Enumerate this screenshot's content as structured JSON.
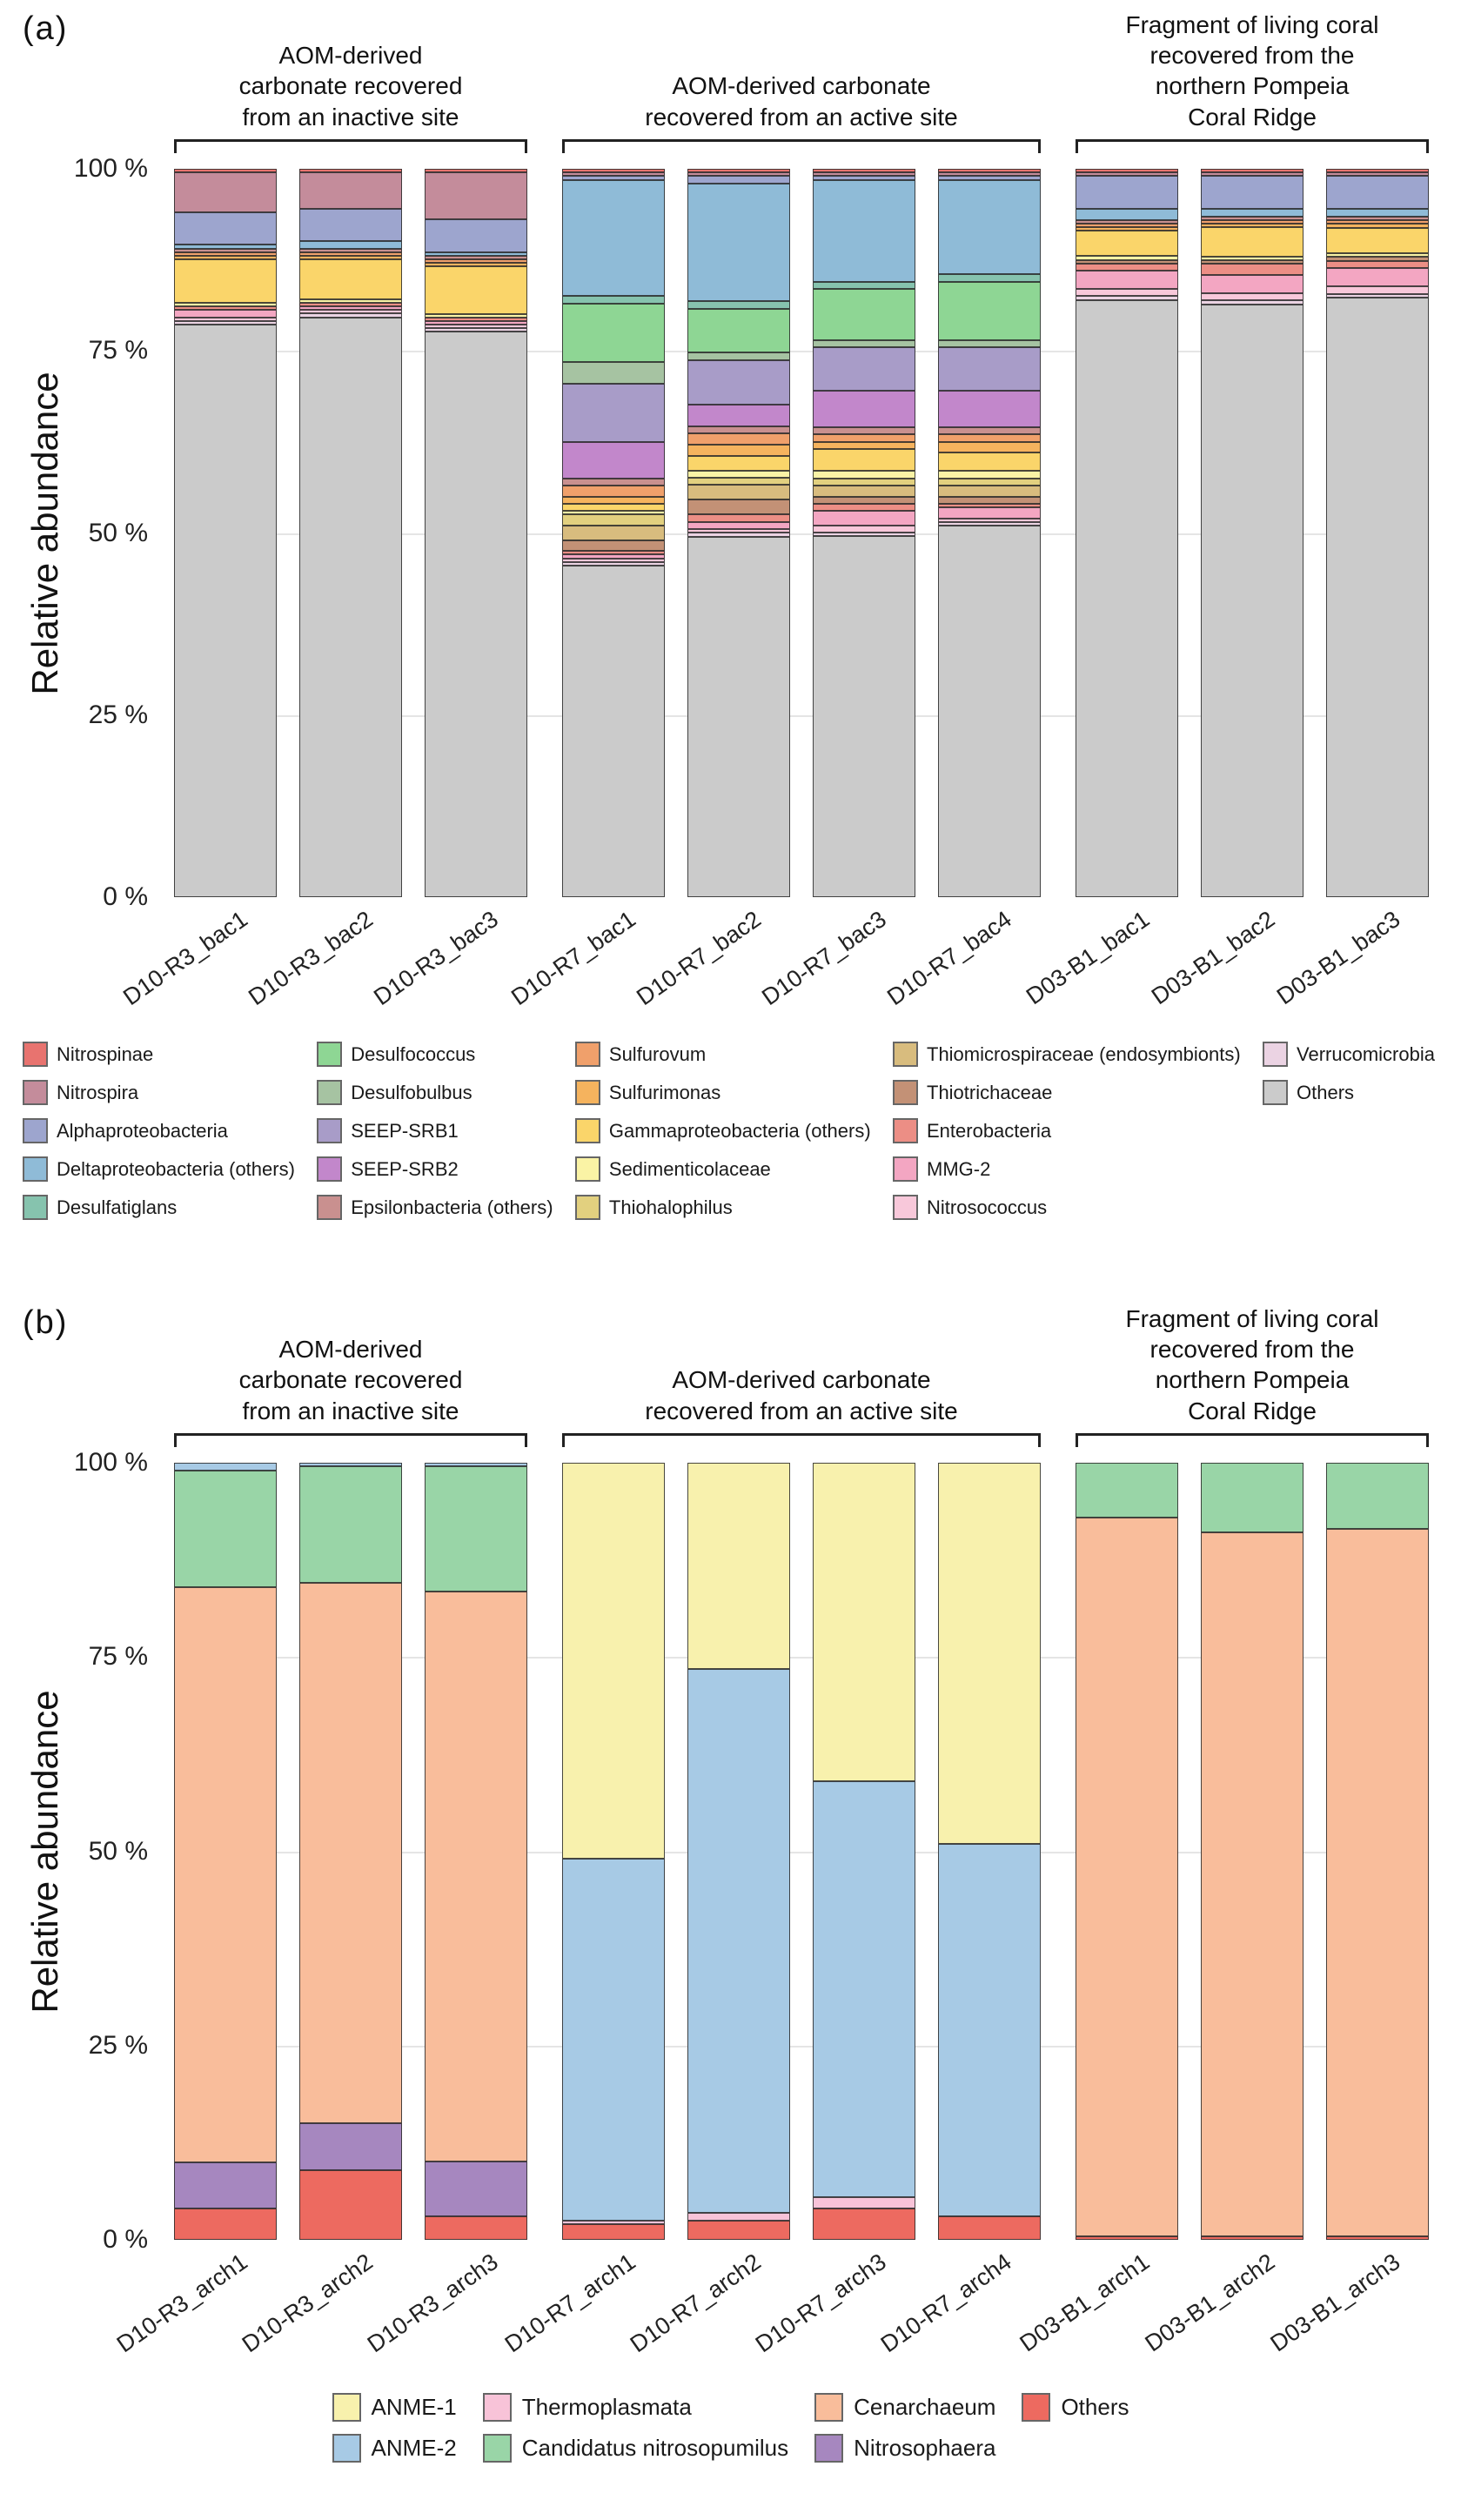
{
  "figure": {
    "panel_a_label": "(a)",
    "panel_b_label": "(b)"
  },
  "chart_data": [
    {
      "panel": "a",
      "type": "bar",
      "stacked": true,
      "title": "",
      "ylabel": "Relative abundance",
      "ylim": [
        0,
        100
      ],
      "unit": "percent",
      "grid_values": [
        25,
        50,
        75
      ],
      "y_ticks": [
        {
          "label": "100 %",
          "value": 100
        },
        {
          "label": "75 %",
          "value": 75
        },
        {
          "label": "50 %",
          "value": 50
        },
        {
          "label": "25 %",
          "value": 25
        },
        {
          "label": "0 %",
          "value": 0
        }
      ],
      "groups": [
        {
          "header_lines": [
            "AOM-derived",
            "carbonate recovered",
            "from an inactive site"
          ],
          "categories": [
            "D10-R3_bac1",
            "D10-R3_bac2",
            "D10-R3_bac3"
          ]
        },
        {
          "header_lines": [
            "AOM-derived carbonate",
            "recovered from an active site"
          ],
          "categories": [
            "D10-R7_bac1",
            "D10-R7_bac2",
            "D10-R7_bac3",
            "D10-R7_bac4"
          ]
        },
        {
          "header_lines": [
            "Fragment of living coral",
            "recovered from the",
            "northern Pompeia",
            "Coral Ridge"
          ],
          "categories": [
            "D03-B1_bac1",
            "D03-B1_bac2",
            "D03-B1_bac3"
          ]
        }
      ],
      "categories": [
        "D10-R3_bac1",
        "D10-R3_bac2",
        "D10-R3_bac3",
        "D10-R7_bac1",
        "D10-R7_bac2",
        "D10-R7_bac3",
        "D10-R7_bac4",
        "D03-B1_bac1",
        "D03-B1_bac2",
        "D03-B1_bac3"
      ],
      "series": [
        {
          "name": "Nitrospinae",
          "color": "#E8736F",
          "values": [
            0.5,
            0.5,
            0.5,
            0.5,
            0.5,
            0.5,
            0.5,
            0.5,
            0.5,
            0.5
          ]
        },
        {
          "name": "Nitrospira",
          "color": "#C48C9B",
          "values": [
            5.5,
            5,
            6.5,
            0.5,
            0.5,
            0.5,
            0.5,
            0.5,
            0.5,
            0.5
          ]
        },
        {
          "name": "Alphaproteobacteria",
          "color": "#9DA5CE",
          "values": [
            4.5,
            4.5,
            4.5,
            0.5,
            1,
            0.5,
            0.5,
            4.5,
            4.5,
            4.5
          ]
        },
        {
          "name": "Deltaproteobacteria (others)",
          "color": "#8FBBD7",
          "values": [
            0.5,
            1,
            0.5,
            16,
            16,
            14,
            13,
            1.5,
            1,
            1
          ]
        },
        {
          "name": "Desulfatiglans",
          "color": "#86C3AE",
          "values": [
            0,
            0,
            0,
            1,
            1,
            1,
            1,
            0,
            0,
            0
          ]
        },
        {
          "name": "Desulfococcus",
          "color": "#8ED694",
          "values": [
            0,
            0,
            0,
            8,
            6,
            7,
            8,
            0,
            0,
            0
          ]
        },
        {
          "name": "Desulfobulbus",
          "color": "#A6C3A2",
          "values": [
            0,
            0,
            0,
            3,
            1,
            1,
            1,
            0,
            0,
            0
          ]
        },
        {
          "name": "SEEP-SRB1",
          "color": "#A89CC8",
          "values": [
            0,
            0,
            0,
            8,
            6,
            6,
            6,
            0,
            0,
            0
          ]
        },
        {
          "name": "SEEP-SRB2",
          "color": "#C287CB",
          "values": [
            0,
            0,
            0,
            5,
            3,
            5,
            5,
            0,
            0,
            0
          ]
        },
        {
          "name": "Epsilonbacteria (others)",
          "color": "#C9908F",
          "values": [
            0.5,
            0.5,
            0.5,
            1,
            1,
            1,
            1,
            0.5,
            0.5,
            0.5
          ]
        },
        {
          "name": "Sulfurovum",
          "color": "#F0A06B",
          "values": [
            0.5,
            0.5,
            0.5,
            1.5,
            1.5,
            1,
            1,
            0.5,
            0.5,
            0.5
          ]
        },
        {
          "name": "Sulfurimonas",
          "color": "#F5B35E",
          "values": [
            0.5,
            0.5,
            0.5,
            1,
            1.5,
            1,
            1.5,
            0.5,
            0.5,
            0.5
          ]
        },
        {
          "name": "Gammaproteobacteria (others)",
          "color": "#FAD56A",
          "values": [
            6,
            5.5,
            6.5,
            1,
            2,
            3,
            2.5,
            3.5,
            4,
            3.5
          ]
        },
        {
          "name": "Sedimenticolaceae",
          "color": "#FAF3A5",
          "values": [
            0.5,
            0.5,
            0.5,
            0.5,
            1,
            1,
            1,
            0.5,
            0.5,
            0.5
          ]
        },
        {
          "name": "Thiohalophilus",
          "color": "#E2D07F",
          "values": [
            0,
            0,
            0,
            1.5,
            1,
            1,
            1,
            0,
            0,
            0
          ]
        },
        {
          "name": "Thiomicrospiraceae (endosymbionts)",
          "color": "#D8BC7E",
          "values": [
            0,
            0,
            0,
            2,
            2,
            1.5,
            1.5,
            0,
            0,
            0
          ]
        },
        {
          "name": "Thiotrichaceae",
          "color": "#C39176",
          "values": [
            0,
            0,
            0,
            1.5,
            2,
            1,
            1,
            0.5,
            0.5,
            0.5
          ]
        },
        {
          "name": "Enterobacteria",
          "color": "#EC8E85",
          "values": [
            0.5,
            0.5,
            0.5,
            0.5,
            1,
            1,
            0.5,
            1,
            1.5,
            1
          ]
        },
        {
          "name": "MMG-2",
          "color": "#F3A6C2",
          "values": [
            1,
            0.5,
            0.5,
            0.5,
            1,
            2,
            1.5,
            2.5,
            2.5,
            2.5
          ]
        },
        {
          "name": "Nitrosococcus",
          "color": "#F8C8DA",
          "values": [
            0.5,
            0.5,
            0.5,
            0.5,
            0.5,
            1,
            0.5,
            1,
            1,
            1
          ]
        },
        {
          "name": "Verrucomicrobia",
          "color": "#EBD3E3",
          "values": [
            0.5,
            0.5,
            0.5,
            0.5,
            0.5,
            0.5,
            0.5,
            0.5,
            0.5,
            0.5
          ]
        },
        {
          "name": "Others",
          "color": "#CBCBCB",
          "values": [
            79,
            80,
            78,
            45.5,
            49,
            49.5,
            51,
            82,
            81,
            81.5
          ]
        }
      ],
      "legend": {
        "position": "bottom",
        "columns": [
          [
            "Nitrospinae",
            "Nitrospira",
            "Alphaproteobacteria",
            "Deltaproteobacteria (others)",
            "Desulfatiglans"
          ],
          [
            "Desulfococcus",
            "Desulfobulbus",
            "SEEP-SRB1",
            "SEEP-SRB2",
            "Epsilonbacteria (others)"
          ],
          [
            "Sulfurovum",
            "Sulfurimonas",
            "Gammaproteobacteria (others)",
            "Sedimenticolaceae",
            "Thiohalophilus"
          ],
          [
            "Thiomicrospiraceae (endosymbionts)",
            "Thiotrichaceae",
            "Enterobacteria",
            "MMG-2",
            "Nitrosococcus"
          ],
          [
            "Verrucomicrobia",
            "Others"
          ]
        ]
      }
    },
    {
      "panel": "b",
      "type": "bar",
      "stacked": true,
      "title": "",
      "ylabel": "Relative abundance",
      "ylim": [
        0,
        100
      ],
      "unit": "percent",
      "grid_values": [
        25,
        50,
        75
      ],
      "y_ticks": [
        {
          "label": "100 %",
          "value": 100
        },
        {
          "label": "75 %",
          "value": 75
        },
        {
          "label": "50 %",
          "value": 50
        },
        {
          "label": "25 %",
          "value": 25
        },
        {
          "label": "0 %",
          "value": 0
        }
      ],
      "groups": [
        {
          "header_lines": [
            "AOM-derived",
            "carbonate recovered",
            "from an inactive site"
          ],
          "categories": [
            "D10-R3_arch1",
            "D10-R3_arch2",
            "D10-R3_arch3"
          ]
        },
        {
          "header_lines": [
            "AOM-derived carbonate",
            "recovered from an active site"
          ],
          "categories": [
            "D10-R7_arch1",
            "D10-R7_arch2",
            "D10-R7_arch3",
            "D10-R7_arch4"
          ]
        },
        {
          "header_lines": [
            "Fragment of living coral",
            "recovered from the",
            "northern Pompeia",
            "Coral Ridge"
          ],
          "categories": [
            "D03-B1_arch1",
            "D03-B1_arch2",
            "D03-B1_arch3"
          ]
        }
      ],
      "categories": [
        "D10-R3_arch1",
        "D10-R3_arch2",
        "D10-R3_arch3",
        "D10-R7_arch1",
        "D10-R7_arch2",
        "D10-R7_arch3",
        "D10-R7_arch4",
        "D03-B1_arch1",
        "D03-B1_arch2",
        "D03-B1_arch3"
      ],
      "series": [
        {
          "name": "ANME-1",
          "color": "#F8F1AD",
          "values": [
            0,
            0,
            0,
            51,
            26.5,
            41,
            49,
            0,
            0,
            0
          ]
        },
        {
          "name": "ANME-2",
          "color": "#A7CAE5",
          "values": [
            1,
            0.5,
            0.5,
            46.5,
            70,
            53.5,
            48,
            0,
            0,
            0
          ]
        },
        {
          "name": "Thermoplasmata",
          "color": "#F8C3D8",
          "values": [
            0,
            0,
            0,
            0.5,
            1,
            1.5,
            0,
            0,
            0,
            0
          ]
        },
        {
          "name": "Candidatus nitrosopumilus",
          "color": "#99D5A7",
          "values": [
            15,
            15,
            16,
            0,
            0,
            0,
            0,
            7,
            9,
            8.5
          ]
        },
        {
          "name": "Cenarchaeum",
          "color": "#F9BD9B",
          "values": [
            74,
            69.5,
            73,
            0,
            0,
            0,
            0,
            92.5,
            90.5,
            91
          ]
        },
        {
          "name": "Nitrosophaera",
          "color": "#A687BF",
          "values": [
            6,
            6,
            7,
            0,
            0,
            0,
            0,
            0,
            0,
            0
          ]
        },
        {
          "name": "Others",
          "color": "#ED6A60",
          "values": [
            4,
            9,
            3,
            2,
            2.5,
            4,
            3,
            0.5,
            0.5,
            0.5
          ]
        }
      ],
      "legend": {
        "position": "bottom",
        "columns": [
          [
            "ANME-1",
            "ANME-2"
          ],
          [
            "Thermoplasmata",
            "Candidatus nitrosopumilus"
          ],
          [
            "Cenarchaeum",
            "Nitrosophaera"
          ],
          [
            "Others"
          ]
        ]
      }
    }
  ]
}
